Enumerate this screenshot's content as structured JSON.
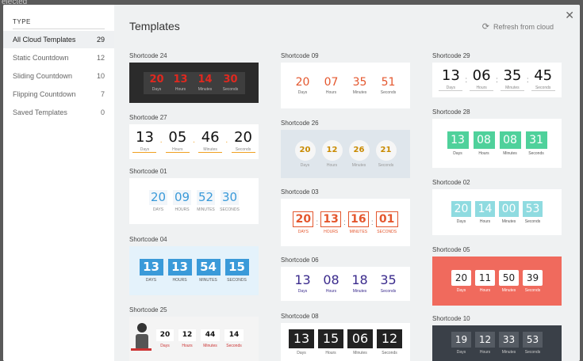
{
  "backdrop": {
    "text": "elected"
  },
  "sidebar": {
    "title": "TYPE",
    "items": [
      {
        "label": "All Cloud Templates",
        "count": "29",
        "active": true
      },
      {
        "label": "Static Countdown",
        "count": "12"
      },
      {
        "label": "Sliding Countdown",
        "count": "10"
      },
      {
        "label": "Flipping Countdown",
        "count": "7"
      },
      {
        "label": "Saved Templates",
        "count": "0"
      }
    ]
  },
  "header": {
    "title": "Templates",
    "refresh_label": "Refresh from cloud",
    "refresh_icon": "refresh-icon",
    "close_icon": "close-icon"
  },
  "templates": [
    {
      "label": "Shortcode 24",
      "values": [
        "20",
        "13",
        "14",
        "30"
      ],
      "units": [
        "Days",
        "Hours",
        "Minutes",
        "Seconds"
      ]
    },
    {
      "label": "Shortcode 27",
      "values": [
        "13",
        "05",
        "46",
        "20"
      ],
      "units": [
        "Days",
        "Hours",
        "Minutes",
        "Seconds"
      ]
    },
    {
      "label": "Shortcode 01",
      "values": [
        "20",
        "09",
        "52",
        "30"
      ],
      "units": [
        "DAYS",
        "HOURS",
        "MINUTES",
        "SECONDS"
      ]
    },
    {
      "label": "Shortcode 04",
      "values": [
        "13",
        "13",
        "54",
        "15"
      ],
      "units": [
        "DAYS",
        "HOURS",
        "MINUTES",
        "SECONDS"
      ]
    },
    {
      "label": "Shortcode 25",
      "values": [
        "20",
        "12",
        "44",
        "14"
      ],
      "units": [
        "Days",
        "Hours",
        "Minutes",
        "Seconds"
      ]
    },
    {
      "label": "Shortcode 09",
      "values": [
        "20",
        "07",
        "35",
        "51"
      ],
      "units": [
        "Days",
        "Hours",
        "Minutes",
        "Seconds"
      ]
    },
    {
      "label": "Shortcode 26",
      "values": [
        "20",
        "12",
        "26",
        "21"
      ],
      "units": [
        "Days",
        "Hours",
        "Minutes",
        "Seconds"
      ]
    },
    {
      "label": "Shortcode 03",
      "values": [
        "20",
        "13",
        "16",
        "01"
      ],
      "units": [
        "DAYS",
        "HOURS",
        "MINUTES",
        "SECONDS"
      ]
    },
    {
      "label": "Shortcode 06",
      "values": [
        "13",
        "08",
        "18",
        "35"
      ],
      "units": [
        "Days",
        "Hours",
        "Minutes",
        "Seconds"
      ]
    },
    {
      "label": "Shortcode 08",
      "values": [
        "13",
        "15",
        "06",
        "12"
      ],
      "units": [
        "Days",
        "Hours",
        "Minutes",
        "Seconds"
      ]
    },
    {
      "label": "Shortcode 29",
      "values": [
        "13",
        "06",
        "35",
        "45"
      ],
      "units": [
        "Days",
        "Hours",
        "Minutes",
        "Seconds"
      ]
    },
    {
      "label": "Shortcode 28",
      "values": [
        "13",
        "08",
        "08",
        "31"
      ],
      "units": [
        "Days",
        "Hours",
        "Minutes",
        "Seconds"
      ]
    },
    {
      "label": "Shortcode 02",
      "values": [
        "20",
        "14",
        "00",
        "53"
      ],
      "units": [
        "Days",
        "Hours",
        "Minutes",
        "Seconds"
      ]
    },
    {
      "label": "Shortcode 05",
      "values": [
        "20",
        "11",
        "50",
        "39"
      ],
      "units": [
        "Days",
        "Hours",
        "Minutes",
        "Seconds"
      ]
    },
    {
      "label": "Shortcode 10",
      "values": [
        "19",
        "12",
        "33",
        "53"
      ],
      "units": [
        "Days",
        "Hours",
        "Minutes",
        "Seconds"
      ]
    }
  ],
  "colors": {
    "accent_red": "#e0281f",
    "accent_blue": "#3a9ad9",
    "accent_orange": "#e4572e",
    "accent_green": "#4fd19b",
    "accent_teal": "#6fd1d6",
    "accent_navy": "#3a2a8c",
    "accent_coral": "#f06a5d"
  }
}
